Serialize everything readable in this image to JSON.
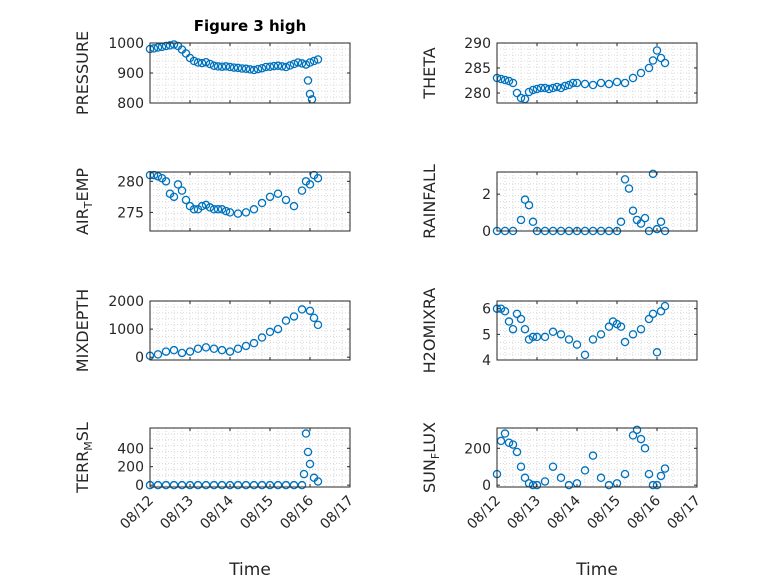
{
  "chart_data": [
    {
      "type": "scatter",
      "title": "Figure 3 high",
      "ylabel": "PRESSURE",
      "ylim": [
        800,
        1000
      ],
      "yticks": [
        800,
        900,
        1000
      ],
      "ytick_labels": [
        "800",
        "900",
        "1000"
      ],
      "xlim": [
        "08/12",
        "08/17"
      ],
      "x_tick_labels": [],
      "grid": "minor",
      "marker_color": "#0072BD",
      "x": [
        12.0,
        12.1,
        12.2,
        12.3,
        12.4,
        12.5,
        12.6,
        12.7,
        12.8,
        12.9,
        13.0,
        13.1,
        13.2,
        13.3,
        13.4,
        13.5,
        13.6,
        13.7,
        13.8,
        13.9,
        14.0,
        14.1,
        14.2,
        14.3,
        14.4,
        14.5,
        14.6,
        14.7,
        14.8,
        14.9,
        15.0,
        15.1,
        15.2,
        15.3,
        15.4,
        15.5,
        15.6,
        15.7,
        15.8,
        15.9,
        16.0,
        16.1,
        16.2,
        15.95,
        16.0,
        16.05
      ],
      "y": [
        980,
        982,
        985,
        987,
        990,
        992,
        995,
        990,
        978,
        965,
        950,
        940,
        935,
        933,
        936,
        930,
        924,
        922,
        921,
        922,
        920,
        918,
        917,
        915,
        914,
        912,
        910,
        913,
        916,
        920,
        921,
        923,
        924,
        922,
        920,
        925,
        930,
        935,
        932,
        928,
        935,
        940,
        945,
        875,
        830,
        812
      ]
    },
    {
      "type": "scatter",
      "ylabel": "THETA",
      "ylim": [
        278,
        290
      ],
      "yticks": [
        280,
        285,
        290
      ],
      "ytick_labels": [
        "280",
        "285",
        "290"
      ],
      "xlim": [
        "08/12",
        "08/17"
      ],
      "x_tick_labels": [],
      "grid": "minor",
      "marker_color": "#0072BD",
      "x": [
        12.0,
        12.1,
        12.2,
        12.3,
        12.4,
        12.5,
        12.6,
        12.7,
        12.8,
        12.9,
        13.0,
        13.1,
        13.2,
        13.3,
        13.4,
        13.5,
        13.6,
        13.7,
        13.8,
        13.9,
        14.0,
        14.2,
        14.4,
        14.6,
        14.8,
        15.0,
        15.2,
        15.4,
        15.6,
        15.8,
        15.9,
        16.0,
        16.1,
        16.2
      ],
      "y": [
        283.0,
        282.8,
        282.6,
        282.4,
        282.0,
        280.0,
        279.0,
        278.8,
        280.2,
        280.6,
        280.8,
        281.0,
        281.0,
        280.8,
        281.0,
        281.2,
        281.0,
        281.4,
        281.6,
        282.0,
        282.0,
        281.8,
        281.6,
        282.0,
        281.8,
        282.2,
        282.0,
        283.0,
        284.0,
        285.0,
        286.5,
        288.5,
        287.0,
        286.0
      ]
    },
    {
      "type": "scatter",
      "ylabel": "AIR_TEMP",
      "ylim": [
        272,
        281.5
      ],
      "yticks": [
        275,
        280
      ],
      "ytick_labels": [
        "275",
        "280"
      ],
      "xlim": [
        "08/12",
        "08/17"
      ],
      "x_tick_labels": [],
      "grid": "minor",
      "marker_color": "#0072BD",
      "x": [
        12.0,
        12.1,
        12.2,
        12.3,
        12.4,
        12.5,
        12.6,
        12.7,
        12.8,
        12.9,
        13.0,
        13.1,
        13.2,
        13.3,
        13.4,
        13.5,
        13.6,
        13.7,
        13.8,
        13.9,
        14.0,
        14.2,
        14.4,
        14.6,
        14.8,
        15.0,
        15.2,
        15.4,
        15.6,
        15.8,
        15.9,
        16.0,
        16.1,
        16.2
      ],
      "y": [
        281.0,
        281.0,
        280.8,
        280.5,
        280.0,
        278.0,
        277.5,
        279.5,
        278.5,
        277.0,
        276.0,
        275.5,
        275.5,
        276.0,
        276.2,
        275.8,
        275.5,
        275.5,
        275.5,
        275.2,
        275.0,
        274.8,
        275.0,
        275.5,
        276.5,
        277.5,
        278.0,
        277.0,
        276.0,
        278.5,
        280.0,
        279.5,
        281.0,
        280.5
      ]
    },
    {
      "type": "scatter",
      "ylabel": "RAINFALL",
      "ylim": [
        0,
        3.2
      ],
      "yticks": [
        0,
        2
      ],
      "ytick_labels": [
        "0",
        "2"
      ],
      "xlim": [
        "08/12",
        "08/17"
      ],
      "x_tick_labels": [],
      "grid": "minor",
      "marker_color": "#0072BD",
      "x": [
        12.0,
        12.2,
        12.4,
        12.6,
        12.7,
        12.8,
        12.9,
        13.0,
        13.2,
        13.4,
        13.6,
        13.8,
        14.0,
        14.2,
        14.4,
        14.6,
        14.8,
        15.0,
        15.1,
        15.2,
        15.3,
        15.4,
        15.5,
        15.6,
        15.7,
        15.8,
        15.9,
        16.0,
        16.1,
        16.2
      ],
      "y": [
        0,
        0,
        0,
        0.6,
        1.7,
        1.4,
        0.5,
        0,
        0,
        0,
        0,
        0,
        0,
        0,
        0,
        0,
        0,
        0,
        0.5,
        2.8,
        2.3,
        1.1,
        0.6,
        0.4,
        0.7,
        0,
        3.1,
        0.1,
        0.5,
        0
      ]
    },
    {
      "type": "scatter",
      "ylabel": "MIXDEPTH",
      "ylim": [
        -100,
        2000
      ],
      "yticks": [
        0,
        1000,
        2000
      ],
      "ytick_labels": [
        "0",
        "1000",
        "2000"
      ],
      "xlim": [
        "08/12",
        "08/17"
      ],
      "x_tick_labels": [],
      "grid": "minor",
      "marker_color": "#0072BD",
      "x": [
        12.0,
        12.2,
        12.4,
        12.6,
        12.8,
        13.0,
        13.2,
        13.4,
        13.6,
        13.8,
        14.0,
        14.2,
        14.4,
        14.6,
        14.8,
        15.0,
        15.2,
        15.4,
        15.6,
        15.8,
        16.0,
        16.1,
        16.2
      ],
      "y": [
        50,
        100,
        200,
        250,
        150,
        200,
        300,
        350,
        300,
        250,
        200,
        300,
        400,
        500,
        700,
        900,
        1000,
        1300,
        1450,
        1700,
        1650,
        1400,
        1150
      ]
    },
    {
      "type": "scatter",
      "ylabel": "H2OMIXRA",
      "ylim": [
        4,
        6.3
      ],
      "yticks": [
        4,
        5,
        6
      ],
      "ytick_labels": [
        "4",
        "5",
        "6"
      ],
      "xlim": [
        "08/12",
        "08/17"
      ],
      "x_tick_labels": [],
      "grid": "minor",
      "marker_color": "#0072BD",
      "x": [
        12.0,
        12.1,
        12.2,
        12.3,
        12.4,
        12.5,
        12.6,
        12.7,
        12.8,
        12.9,
        13.0,
        13.2,
        13.4,
        13.6,
        13.8,
        14.0,
        14.2,
        14.4,
        14.6,
        14.8,
        14.9,
        15.0,
        15.1,
        15.2,
        15.4,
        15.6,
        15.8,
        15.9,
        16.0,
        16.1,
        16.2
      ],
      "y": [
        6.0,
        6.0,
        5.9,
        5.5,
        5.2,
        5.8,
        5.6,
        5.2,
        4.8,
        4.9,
        4.9,
        4.9,
        5.1,
        5.0,
        4.8,
        4.6,
        4.2,
        4.8,
        5.0,
        5.3,
        5.5,
        5.4,
        5.3,
        4.7,
        5.0,
        5.2,
        5.6,
        5.8,
        4.3,
        5.9,
        6.1
      ]
    },
    {
      "type": "scatter",
      "ylabel": "TERR_MSL",
      "ylim": [
        -20,
        620
      ],
      "yticks": [
        0,
        200,
        400
      ],
      "ytick_labels": [
        "0",
        "200",
        "400"
      ],
      "xlim": [
        "08/12",
        "08/17"
      ],
      "x_tick_labels": [
        "08/12",
        "08/13",
        "08/14",
        "08/15",
        "08/16",
        "08/17"
      ],
      "xlabel": "Time",
      "grid": "minor",
      "marker_color": "#0072BD",
      "x": [
        12.0,
        12.2,
        12.4,
        12.6,
        12.8,
        13.0,
        13.2,
        13.4,
        13.6,
        13.8,
        14.0,
        14.2,
        14.4,
        14.6,
        14.8,
        15.0,
        15.2,
        15.4,
        15.6,
        15.8,
        15.85,
        15.9,
        15.95,
        16.0,
        16.1,
        16.2
      ],
      "y": [
        0,
        0,
        0,
        0,
        0,
        0,
        0,
        0,
        0,
        0,
        0,
        0,
        0,
        0,
        0,
        0,
        0,
        0,
        0,
        0,
        120,
        560,
        360,
        230,
        80,
        40
      ]
    },
    {
      "type": "scatter",
      "ylabel": "SUN_FLUX",
      "ylim": [
        -10,
        310
      ],
      "yticks": [
        0,
        200
      ],
      "ytick_labels": [
        "0",
        "200"
      ],
      "xlim": [
        "08/12",
        "08/17"
      ],
      "x_tick_labels": [
        "08/12",
        "08/13",
        "08/14",
        "08/15",
        "08/16",
        "08/17"
      ],
      "xlabel": "Time",
      "grid": "minor",
      "marker_color": "#0072BD",
      "x": [
        12.0,
        12.1,
        12.2,
        12.3,
        12.4,
        12.5,
        12.6,
        12.7,
        12.8,
        12.9,
        13.0,
        13.2,
        13.4,
        13.6,
        13.8,
        14.0,
        14.2,
        14.4,
        14.6,
        14.8,
        15.0,
        15.2,
        15.4,
        15.5,
        15.6,
        15.7,
        15.8,
        15.9,
        16.0,
        16.1,
        16.2
      ],
      "y": [
        60,
        240,
        280,
        230,
        220,
        180,
        100,
        40,
        10,
        0,
        0,
        20,
        100,
        40,
        0,
        10,
        80,
        160,
        40,
        0,
        10,
        60,
        270,
        300,
        250,
        200,
        60,
        0,
        0,
        50,
        90
      ]
    }
  ]
}
